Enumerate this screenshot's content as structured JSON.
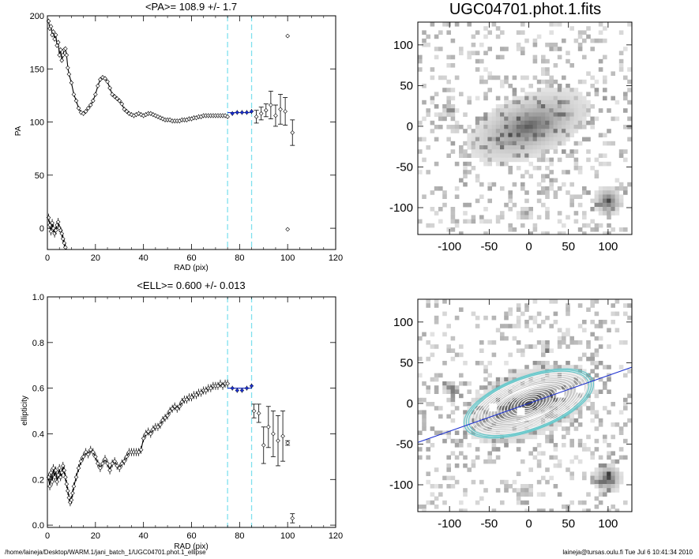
{
  "footer": {
    "path": "/home/laineja/Desktop/WARM.1/jani_batch_1/UGC04701.phot.1_ellipse",
    "user_time": "laineja@tursas.oulu.fi  Tue Jul  6 10:41:34 2010"
  },
  "colors": {
    "fit_line": "#1a2fd0",
    "marker_line": "#7fe0ee",
    "contour": "#ffffff",
    "outer_isophote": "#66c9cc"
  },
  "chart_data": [
    {
      "type": "scatter",
      "id": "pa-profile",
      "title": "<PA>= 108.9 +/-   1.7",
      "xlabel": "RAD (pix)",
      "ylabel": "PA",
      "xlim": [
        0,
        120
      ],
      "ylim": [
        -20,
        200
      ],
      "xticks": [
        0,
        20,
        40,
        60,
        80,
        100,
        120
      ],
      "yticks": [
        0,
        50,
        100,
        150,
        200
      ],
      "vlines": [
        75,
        85
      ],
      "fit": {
        "x": [
          75,
          85
        ],
        "y": [
          108.9,
          108.9
        ]
      },
      "points_dense": [
        [
          0.5,
          195
        ],
        [
          1.0,
          188
        ],
        [
          1.5,
          190
        ],
        [
          2.0,
          182
        ],
        [
          2.5,
          185
        ],
        [
          3.0,
          178
        ],
        [
          3.5,
          182
        ],
        [
          4.0,
          172
        ],
        [
          4.5,
          175
        ],
        [
          5.0,
          163
        ],
        [
          5.5,
          168
        ],
        [
          6.0,
          158
        ],
        [
          6.5,
          163
        ],
        [
          7.0,
          168
        ],
        [
          7.5,
          169
        ],
        [
          8.0,
          163
        ],
        [
          8.5,
          151
        ],
        [
          9.0,
          145
        ],
        [
          10,
          137
        ],
        [
          11,
          126
        ],
        [
          12,
          120
        ],
        [
          13,
          113
        ],
        [
          14,
          109
        ],
        [
          15,
          108
        ],
        [
          16,
          110
        ],
        [
          17,
          113
        ],
        [
          18,
          116
        ],
        [
          19,
          120
        ],
        [
          20,
          126
        ],
        [
          21,
          134
        ],
        [
          22,
          140
        ],
        [
          23,
          142
        ],
        [
          24,
          141
        ],
        [
          25,
          138
        ],
        [
          26,
          132
        ],
        [
          27,
          126
        ],
        [
          28,
          124
        ],
        [
          29,
          122
        ],
        [
          30,
          120
        ],
        [
          31,
          117
        ],
        [
          32,
          112
        ],
        [
          33,
          110
        ],
        [
          34,
          108
        ],
        [
          35,
          107
        ],
        [
          36,
          106
        ],
        [
          37,
          107
        ],
        [
          38,
          108
        ],
        [
          39,
          107
        ],
        [
          40,
          106
        ],
        [
          41,
          107
        ],
        [
          42,
          108
        ],
        [
          43,
          108
        ],
        [
          44,
          107
        ],
        [
          45,
          106
        ],
        [
          46,
          105
        ],
        [
          47,
          104
        ],
        [
          48,
          103
        ],
        [
          49,
          102
        ],
        [
          50,
          102
        ],
        [
          51,
          102
        ],
        [
          52,
          101
        ],
        [
          53,
          101
        ],
        [
          54,
          101
        ],
        [
          55,
          101
        ],
        [
          56,
          102
        ],
        [
          57,
          102
        ],
        [
          58,
          102
        ],
        [
          59,
          103
        ],
        [
          60,
          103
        ],
        [
          61,
          104
        ],
        [
          62,
          104
        ],
        [
          63,
          105
        ],
        [
          64,
          105
        ],
        [
          65,
          106
        ],
        [
          66,
          106
        ],
        [
          67,
          106
        ],
        [
          68,
          106
        ],
        [
          69,
          106
        ],
        [
          70,
          106
        ],
        [
          71,
          106
        ],
        [
          72,
          106
        ],
        [
          73,
          106
        ],
        [
          74,
          106
        ],
        [
          75,
          105
        ]
      ],
      "points_wrap": [
        [
          0.5,
          10
        ],
        [
          1.0,
          3
        ],
        [
          1.5,
          -3
        ],
        [
          2.0,
          5
        ],
        [
          2.5,
          0
        ],
        [
          3.0,
          -5
        ],
        [
          3.5,
          -2
        ],
        [
          4.0,
          3
        ],
        [
          4.5,
          6
        ],
        [
          5.0,
          0
        ],
        [
          5.5,
          -2
        ],
        [
          6.0,
          -5
        ],
        [
          6.5,
          -10
        ],
        [
          7.0,
          -14
        ],
        [
          7.5,
          -18
        ],
        [
          8.0,
          -22
        ]
      ],
      "points_fit": [
        [
          77,
          108
        ],
        [
          79,
          109
        ],
        [
          81,
          109
        ],
        [
          83,
          109
        ],
        [
          85,
          110
        ]
      ],
      "points_err": [
        [
          87,
          105,
          6
        ],
        [
          89,
          108,
          6
        ],
        [
          91,
          111,
          6
        ],
        [
          93,
          116,
          13
        ],
        [
          95,
          106,
          10
        ],
        [
          97,
          112,
          14
        ],
        [
          99,
          110,
          13
        ],
        [
          102,
          90,
          12
        ],
        [
          100,
          181,
          0
        ],
        [
          100,
          -1,
          0
        ]
      ]
    },
    {
      "type": "scatter",
      "id": "ell-profile",
      "title": "<ELL>= 0.600 +/-  0.013",
      "xlabel": "RAD (pix)",
      "ylabel": "ellipticity",
      "xlim": [
        0,
        120
      ],
      "ylim": [
        -0.01,
        1.0
      ],
      "xticks": [
        0,
        20,
        40,
        60,
        80,
        100,
        120
      ],
      "yticks": [
        0.0,
        0.2,
        0.4,
        0.6,
        0.8,
        1.0
      ],
      "vlines": [
        75,
        85
      ],
      "fit": {
        "x": [
          75,
          85
        ],
        "y": [
          0.6,
          0.6
        ]
      },
      "points_dense": [
        [
          0.5,
          0.21
        ],
        [
          1.0,
          0.17
        ],
        [
          1.5,
          0.23
        ],
        [
          2.0,
          0.19
        ],
        [
          2.5,
          0.25
        ],
        [
          3.0,
          0.21
        ],
        [
          3.5,
          0.24
        ],
        [
          4.0,
          0.19
        ],
        [
          4.5,
          0.22
        ],
        [
          5.0,
          0.25
        ],
        [
          5.5,
          0.21
        ],
        [
          6.0,
          0.23
        ],
        [
          6.5,
          0.26
        ],
        [
          7.0,
          0.24
        ],
        [
          7.5,
          0.21
        ],
        [
          8.0,
          0.18
        ],
        [
          8.5,
          0.15
        ],
        [
          9.0,
          0.12
        ],
        [
          9.5,
          0.1
        ],
        [
          10,
          0.11
        ],
        [
          10.5,
          0.14
        ],
        [
          11,
          0.17
        ],
        [
          12,
          0.21
        ],
        [
          13,
          0.25
        ],
        [
          14,
          0.28
        ],
        [
          15,
          0.3
        ],
        [
          16,
          0.32
        ],
        [
          17,
          0.31
        ],
        [
          18,
          0.33
        ],
        [
          19,
          0.32
        ],
        [
          20,
          0.3
        ],
        [
          21,
          0.27
        ],
        [
          22,
          0.25
        ],
        [
          23,
          0.27
        ],
        [
          24,
          0.29
        ],
        [
          25,
          0.27
        ],
        [
          26,
          0.24
        ],
        [
          27,
          0.27
        ],
        [
          28,
          0.28
        ],
        [
          29,
          0.26
        ],
        [
          30,
          0.25
        ],
        [
          31,
          0.27
        ],
        [
          32,
          0.28
        ],
        [
          33,
          0.3
        ],
        [
          34,
          0.32
        ],
        [
          35,
          0.32
        ],
        [
          36,
          0.32
        ],
        [
          37,
          0.32
        ],
        [
          38,
          0.32
        ],
        [
          39,
          0.33
        ],
        [
          40,
          0.38
        ],
        [
          41,
          0.4
        ],
        [
          42,
          0.41
        ],
        [
          43,
          0.4
        ],
        [
          44,
          0.42
        ],
        [
          45,
          0.43
        ],
        [
          46,
          0.43
        ],
        [
          47,
          0.44
        ],
        [
          48,
          0.46
        ],
        [
          49,
          0.47
        ],
        [
          50,
          0.48
        ],
        [
          51,
          0.5
        ],
        [
          52,
          0.51
        ],
        [
          53,
          0.52
        ],
        [
          54,
          0.51
        ],
        [
          55,
          0.52
        ],
        [
          56,
          0.54
        ],
        [
          57,
          0.55
        ],
        [
          58,
          0.55
        ],
        [
          59,
          0.56
        ],
        [
          60,
          0.56
        ],
        [
          61,
          0.57
        ],
        [
          62,
          0.57
        ],
        [
          63,
          0.58
        ],
        [
          64,
          0.58
        ],
        [
          65,
          0.59
        ],
        [
          66,
          0.59
        ],
        [
          67,
          0.6
        ],
        [
          68,
          0.6
        ],
        [
          69,
          0.61
        ],
        [
          70,
          0.61
        ],
        [
          71,
          0.61
        ],
        [
          72,
          0.62
        ],
        [
          73,
          0.61
        ],
        [
          74,
          0.62
        ],
        [
          75,
          0.62
        ]
      ],
      "points_fit": [
        [
          77,
          0.6
        ],
        [
          79,
          0.59
        ],
        [
          81,
          0.59
        ],
        [
          83,
          0.6
        ],
        [
          85,
          0.61
        ]
      ],
      "points_err": [
        [
          86,
          0.5,
          0.03
        ],
        [
          88,
          0.49,
          0.04
        ],
        [
          90,
          0.35,
          0.08
        ],
        [
          92,
          0.43,
          0.09
        ],
        [
          94,
          0.4,
          0.1
        ],
        [
          96,
          0.37,
          0.11
        ],
        [
          98,
          0.39,
          0.11
        ],
        [
          100,
          0.36,
          0.01
        ],
        [
          102,
          0.03,
          0.02
        ]
      ]
    },
    {
      "type": "heatmap",
      "id": "galaxy-image",
      "title": "UGC04701.phot.1.fits",
      "xlim": [
        -140,
        130
      ],
      "ylim": [
        -133,
        128
      ],
      "xticks": [
        -100,
        -50,
        0,
        50,
        100
      ],
      "yticks": [
        -100,
        -50,
        0,
        50,
        100
      ]
    },
    {
      "type": "heatmap",
      "id": "isophote-image",
      "title": "",
      "xlim": [
        -140,
        130
      ],
      "ylim": [
        -133,
        128
      ],
      "xticks": [
        -100,
        -50,
        0,
        50,
        100
      ],
      "yticks": [
        -100,
        -50,
        0,
        50,
        100
      ],
      "pa_line": {
        "angle_deg": 18.9,
        "offset": 0
      }
    }
  ]
}
